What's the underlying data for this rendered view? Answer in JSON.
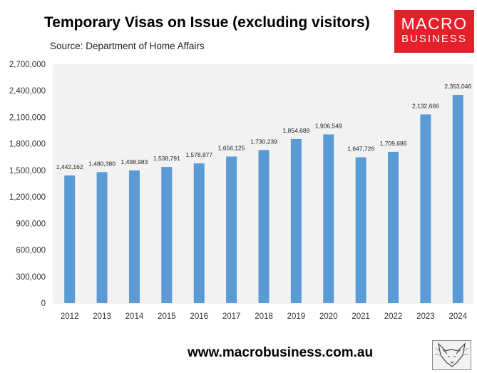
{
  "header": {
    "title": "Temporary Visas on Issue (excluding visitors)",
    "source": "Source: Department of Home Affairs"
  },
  "logo": {
    "line1": "MACRO",
    "line2": "BUSINESS",
    "color": "#e4202b"
  },
  "footer": {
    "website": "www.macrobusiness.com.au",
    "fox_icon": "fox-head-sketch-icon"
  },
  "colors": {
    "bar": "#5b9bd5",
    "plot_background": "#f2f2f2"
  },
  "chart_data": {
    "type": "bar",
    "title": "Temporary Visas on Issue (excluding visitors)",
    "categories": [
      "2012",
      "2013",
      "2014",
      "2015",
      "2016",
      "2017",
      "2018",
      "2019",
      "2020",
      "2021",
      "2022",
      "2023",
      "2024"
    ],
    "values": [
      1442162,
      1480380,
      1498983,
      1538791,
      1578877,
      1656125,
      1730239,
      1854689,
      1906549,
      1647726,
      1709686,
      2132666,
      2353046
    ],
    "value_labels": [
      "1,442,162",
      "1,480,380",
      "1,498,983",
      "1,538,791",
      "1,578,877",
      "1,656,125",
      "1,730,239",
      "1,854,689",
      "1,906,549",
      "1,647,726",
      "1,709,686",
      "2,132,666",
      "2,353,046"
    ],
    "ylim": [
      0,
      2700000
    ],
    "yticks": [
      0,
      300000,
      600000,
      900000,
      1200000,
      1500000,
      1800000,
      2100000,
      2400000,
      2700000
    ],
    "ytick_labels": [
      "0",
      "300,000",
      "600,000",
      "900,000",
      "1,200,000",
      "1,500,000",
      "1,800,000",
      "2,100,000",
      "2,400,000",
      "2,700,000"
    ],
    "xlabel": "",
    "ylabel": "",
    "grid": false,
    "legend": "none"
  }
}
